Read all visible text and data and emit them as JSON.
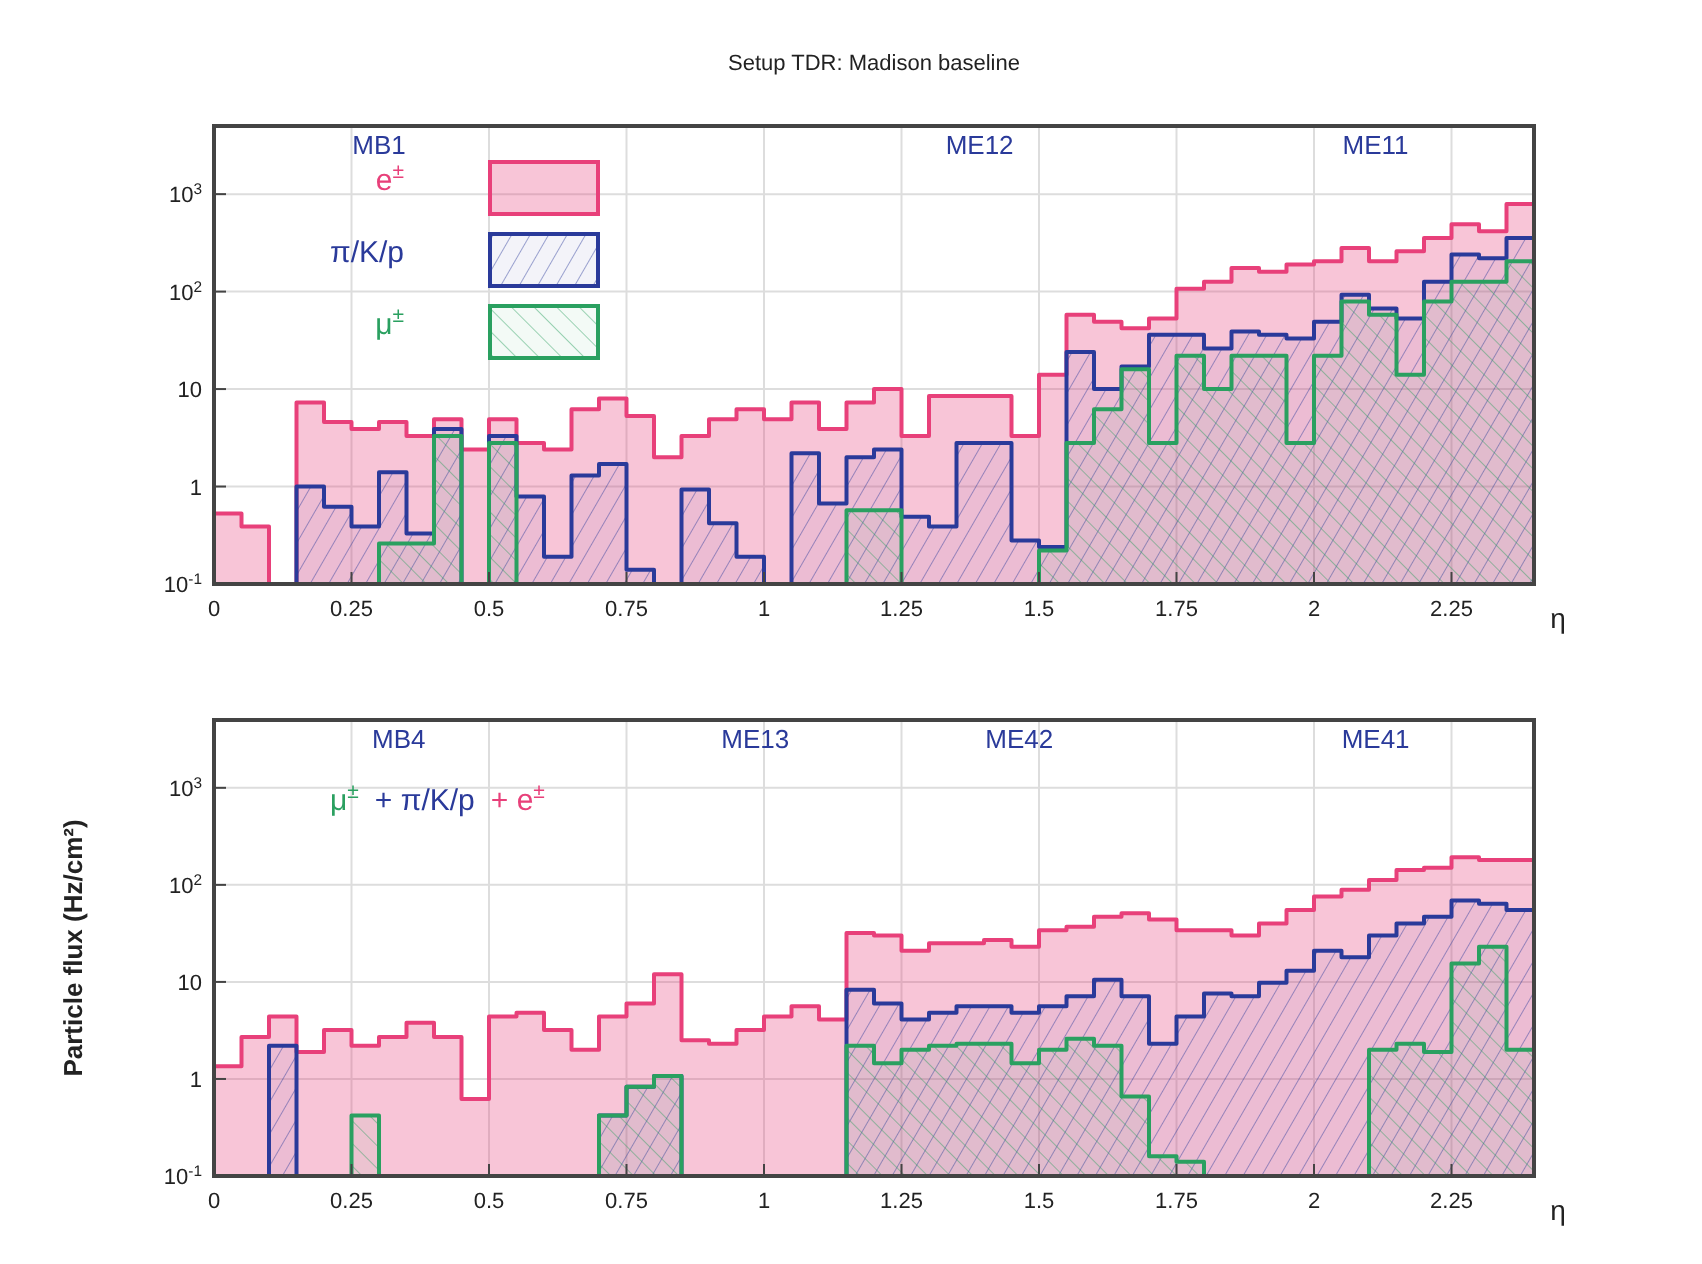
{
  "chart_data": [
    {
      "type": "histogram",
      "title": "Setup TDR: Madison baseline",
      "xlabel": "η",
      "bins": [
        0,
        0.05,
        0.1,
        0.15,
        0.2,
        0.25,
        0.3,
        0.35,
        0.4,
        0.45,
        0.5,
        0.55,
        0.6,
        0.65,
        0.7,
        0.75,
        0.8,
        0.85,
        0.9,
        0.95,
        1,
        1.05,
        1.1,
        1.15,
        1.2,
        1.25,
        1.3,
        1.35,
        1.4,
        1.45,
        1.5,
        1.55,
        1.6,
        1.65,
        1.7,
        1.75,
        1.8,
        1.85,
        1.9,
        1.95,
        2,
        2.05,
        2.1,
        2.15,
        2.2,
        2.25,
        2.3,
        2.35,
        2.4
      ],
      "series": [
        {
          "name": "e$^{±}$",
          "color": "#e8407a",
          "values": [
            0.53,
            0.39,
            null,
            7.3,
            4.6,
            3.9,
            4.6,
            3.3,
            4.9,
            2.4,
            4.9,
            2.8,
            2.4,
            6.2,
            8,
            5.3,
            2.0,
            3.3,
            4.9,
            6.2,
            4.9,
            7.3,
            3.9,
            7.3,
            10,
            3.3,
            8.5,
            8.5,
            8.5,
            3.3,
            14,
            58,
            49,
            42,
            53,
            107,
            126,
            175,
            160,
            190,
            205,
            280,
            205,
            260,
            355,
            490,
            415,
            790
          ]
        },
        {
          "name": "π/K/p",
          "color": "#2a3a9a",
          "values": [
            null,
            null,
            null,
            1.0,
            0.62,
            0.39,
            1.4,
            0.33,
            3.9,
            null,
            3.3,
            0.79,
            0.19,
            1.3,
            1.7,
            0.14,
            null,
            0.93,
            0.42,
            0.19,
            null,
            2.2,
            0.67,
            2.0,
            2.4,
            0.49,
            0.39,
            2.8,
            2.8,
            0.28,
            0.24,
            24,
            10,
            17,
            36,
            36,
            26,
            39,
            36,
            33,
            49,
            93,
            67,
            53,
            126,
            240,
            220,
            355
          ]
        },
        {
          "name": "μ$^{±}$",
          "color": "#2aa060",
          "values": [
            null,
            null,
            null,
            null,
            null,
            null,
            0.26,
            0.26,
            3.3,
            null,
            2.8,
            null,
            null,
            null,
            null,
            null,
            null,
            null,
            null,
            null,
            null,
            null,
            null,
            0.57,
            0.57,
            null,
            null,
            null,
            null,
            null,
            0.22,
            2.8,
            6.2,
            16,
            2.8,
            22,
            10,
            22,
            22,
            2.8,
            22,
            79,
            58,
            14,
            79,
            126,
            126,
            205
          ]
        }
      ],
      "xlim": [
        0,
        2.4
      ],
      "xticks": [
        0,
        0.25,
        0.5,
        0.75,
        1,
        1.25,
        1.5,
        1.75,
        2,
        2.25
      ],
      "ylim": [
        0.1,
        5000
      ],
      "yticks": [
        {
          "value": 0.1,
          "label": "10$^{-1}$"
        },
        {
          "value": 1,
          "label": "1"
        },
        {
          "value": 10,
          "label": "10"
        },
        {
          "value": 100,
          "label": "10$^{2}$"
        },
        {
          "value": 1000,
          "label": "10$^{3}$"
        }
      ],
      "log": true,
      "grid": true,
      "legend": "top left",
      "annotations": [
        "MB1",
        "ME12",
        "ME11"
      ]
    },
    {
      "type": "histogram",
      "xlabel": "η",
      "ylabel": "Particle flux (Hz/cm²)",
      "bins": [
        0,
        0.05,
        0.1,
        0.15,
        0.2,
        0.25,
        0.3,
        0.35,
        0.4,
        0.45,
        0.5,
        0.55,
        0.6,
        0.65,
        0.7,
        0.75,
        0.8,
        0.85,
        0.9,
        0.95,
        1,
        1.05,
        1.1,
        1.15,
        1.2,
        1.25,
        1.3,
        1.35,
        1.4,
        1.45,
        1.5,
        1.55,
        1.6,
        1.65,
        1.7,
        1.75,
        1.8,
        1.85,
        1.9,
        1.95,
        2,
        2.05,
        2.1,
        2.15,
        2.2,
        2.25,
        2.3,
        2.35,
        2.4
      ],
      "series": [
        {
          "name": "+ e$^{±}$",
          "color": "#e8407a",
          "values": [
            1.35,
            2.7,
            4.4,
            1.9,
            3.2,
            2.2,
            2.7,
            3.8,
            2.7,
            0.62,
            4.4,
            4.8,
            3.2,
            2.0,
            4.4,
            6.0,
            12,
            2.5,
            2.3,
            3.2,
            4.4,
            5.6,
            4.1,
            32,
            30,
            21,
            25,
            25,
            27,
            23,
            34,
            37,
            47,
            51,
            44,
            34,
            34,
            30,
            40,
            55,
            76,
            89,
            112,
            142,
            150,
            193,
            180,
            180
          ]
        },
        {
          "name": "+ π/K/p",
          "color": "#2a3a9a",
          "values": [
            null,
            null,
            2.2,
            null,
            null,
            null,
            null,
            null,
            null,
            null,
            null,
            null,
            null,
            null,
            0.42,
            0.83,
            1.07,
            null,
            null,
            null,
            null,
            null,
            null,
            8.3,
            6.0,
            4.1,
            4.8,
            5.6,
            5.6,
            4.8,
            5.6,
            7.1,
            10.5,
            7.1,
            2.3,
            4.4,
            7.6,
            7.1,
            9.8,
            13,
            21,
            18,
            30,
            40,
            47,
            69,
            64,
            55
          ]
        },
        {
          "name": "μ$^{±}$",
          "color": "#2aa060",
          "values": [
            null,
            null,
            null,
            null,
            null,
            0.42,
            null,
            null,
            null,
            null,
            null,
            null,
            null,
            null,
            0.42,
            0.83,
            1.07,
            null,
            null,
            null,
            null,
            null,
            null,
            2.2,
            1.45,
            2.0,
            2.2,
            2.3,
            2.3,
            1.45,
            2.0,
            2.6,
            2.2,
            0.66,
            0.16,
            0.14,
            null,
            null,
            null,
            null,
            null,
            null,
            2.0,
            2.3,
            1.9,
            15.5,
            23,
            2.0
          ]
        }
      ],
      "xlim": [
        0,
        2.4
      ],
      "xticks": [
        0,
        0.25,
        0.5,
        0.75,
        1,
        1.25,
        1.5,
        1.75,
        2,
        2.25
      ],
      "ylim": [
        0.1,
        5000
      ],
      "yticks": [
        {
          "value": 0.1,
          "label": "10$^{-1}$"
        },
        {
          "value": 1,
          "label": "1"
        },
        {
          "value": 10,
          "label": "10"
        },
        {
          "value": 100,
          "label": "10$^{2}$"
        },
        {
          "value": 1000,
          "label": "10$^{3}$"
        }
      ],
      "log": true,
      "grid": true,
      "legend": "top",
      "annotations": [
        "MB4",
        "ME13",
        "ME42",
        "ME41"
      ]
    }
  ]
}
